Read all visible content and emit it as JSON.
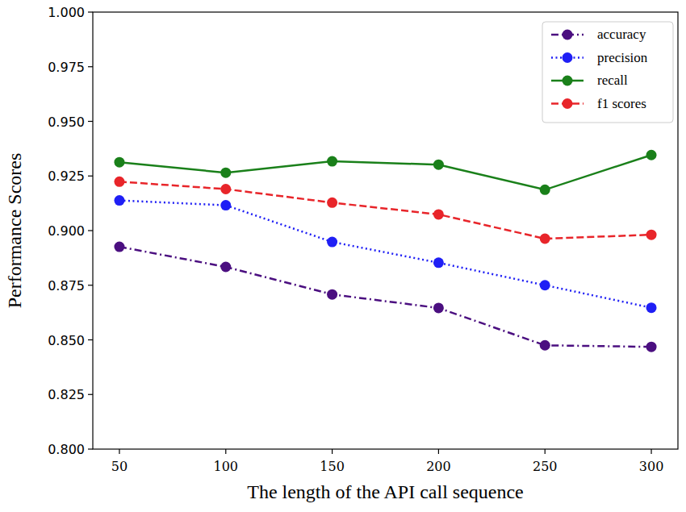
{
  "chart_data": {
    "type": "line",
    "x_label": "The length of the API call sequence",
    "y_label": "Performance Scores",
    "x": [
      50,
      100,
      150,
      200,
      250,
      300
    ],
    "series": [
      {
        "name": "accuracy",
        "color": "#4b0f80",
        "marker": "circle",
        "line_style": "dashdot",
        "values": [
          0.8926,
          0.8834,
          0.8708,
          0.8646,
          0.8475,
          0.8468
        ]
      },
      {
        "name": "precision",
        "color": "#1f1ff5",
        "marker": "circle",
        "line_style": "dotted",
        "values": [
          0.9138,
          0.9116,
          0.8948,
          0.8853,
          0.875,
          0.8647
        ]
      },
      {
        "name": "recall",
        "color": "#1a801a",
        "marker": "circle",
        "line_style": "solid",
        "values": [
          0.9313,
          0.9265,
          0.9317,
          0.9302,
          0.9187,
          0.9346
        ]
      },
      {
        "name": "f1 scores",
        "color": "#e8252a",
        "marker": "circle",
        "line_style": "dashed",
        "values": [
          0.9224,
          0.919,
          0.9128,
          0.9074,
          0.8963,
          0.8981
        ]
      }
    ],
    "xlim": [
      37.5,
      312.5
    ],
    "xticks": [
      50,
      100,
      150,
      200,
      250,
      300
    ],
    "ylim": [
      0.8,
      1.0
    ],
    "yticks": [
      {
        "value": 0.8,
        "label": "0.800"
      },
      {
        "value": 0.825,
        "label": "0.825"
      },
      {
        "value": 0.85,
        "label": "0.850"
      },
      {
        "value": 0.875,
        "label": "0.875"
      },
      {
        "value": 0.9,
        "label": "0.900"
      },
      {
        "value": 0.925,
        "label": "0.925"
      },
      {
        "value": 0.95,
        "label": "0.950"
      },
      {
        "value": 0.975,
        "label": "0.975"
      },
      {
        "value": 1.0,
        "label": "1.000"
      }
    ],
    "grid": false,
    "legend": "upper-right"
  }
}
